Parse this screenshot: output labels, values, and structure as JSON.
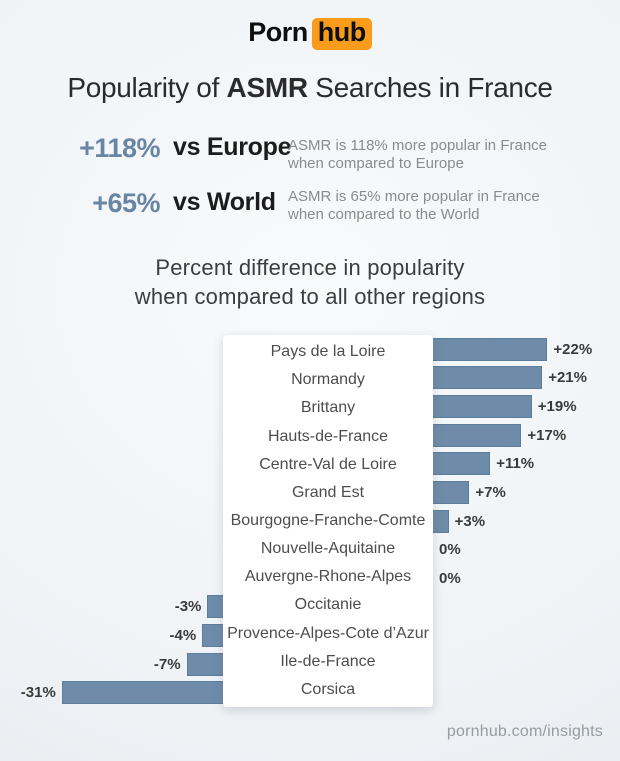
{
  "logo": {
    "part1": "Porn",
    "part2": "hub"
  },
  "title": {
    "prefix": "Popularity of ",
    "emphasis": "ASMR",
    "suffix": " Searches in France"
  },
  "stats": [
    {
      "value": "+118%",
      "vs": "vs Europe",
      "description": "ASMR is 118% more popular in France when compared to Europe"
    },
    {
      "value": "+65%",
      "vs": "vs World",
      "description": "ASMR is 65% more popular in France when compared to the World"
    }
  ],
  "subtitle": {
    "line1": "Percent difference in popularity",
    "line2": "when compared to all other regions"
  },
  "chart_data": {
    "type": "bar",
    "orientation": "horizontal",
    "title": "Percent difference in popularity when compared to all other regions",
    "categories": [
      "Pays de la Loire",
      "Normandy",
      "Brittany",
      "Hauts-de-France",
      "Centre-Val de Loire",
      "Grand Est",
      "Bourgogne-Franche-Comte",
      "Nouvelle-Aquitaine",
      "Auvergne-Rhone-Alpes",
      "Occitanie",
      "Provence-Alpes-Cote d’Azur",
      "Ile-de-France",
      "Corsica"
    ],
    "values": [
      22,
      21,
      19,
      17,
      11,
      7,
      3,
      0,
      0,
      -3,
      -4,
      -7,
      -31
    ],
    "value_labels": [
      "+22%",
      "+21%",
      "+19%",
      "+17%",
      "+11%",
      "+7%",
      "+3%",
      "0%",
      "0%",
      "-3%",
      "-4%",
      "-7%",
      "-31%"
    ],
    "xlim": [
      -31,
      22
    ],
    "grid": false,
    "legend": false,
    "bar_color": "#6e8ca9",
    "bar_border_color": "#5c7e9d"
  },
  "footer": {
    "text": "pornhub.com/insights"
  },
  "colors": {
    "accent_blue": "#6886a4",
    "brand_orange": "#f99c1b",
    "background_light": "#f0f3f6",
    "card_white": "#ffffff"
  }
}
